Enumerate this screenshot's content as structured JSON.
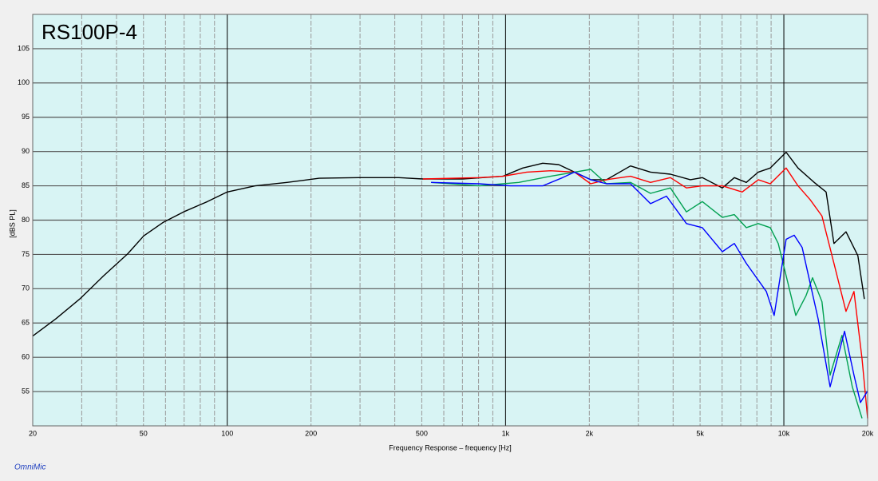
{
  "chart_data": {
    "type": "line",
    "title": "RS100P-4",
    "x_label": "Frequency Response – frequency [Hz]",
    "y_label": "[dBS PL]",
    "footer": "OmniMic",
    "log_x": true,
    "grid": true,
    "xlim": [
      20,
      20000
    ],
    "ylim": [
      50,
      110
    ],
    "xticks": [
      20,
      50,
      100,
      200,
      500,
      {
        "value": 1000,
        "label": "1k"
      },
      {
        "value": 2000,
        "label": "2k"
      },
      {
        "value": 5000,
        "label": "5k"
      },
      {
        "value": 10000,
        "label": "10k"
      },
      {
        "value": 20000,
        "label": "20k"
      }
    ],
    "xticks_minor": [
      30,
      40,
      60,
      70,
      80,
      90,
      300,
      400,
      600,
      700,
      800,
      900,
      3000,
      4000,
      6000,
      7000,
      8000,
      9000
    ],
    "yticks": [
      55,
      60,
      65,
      70,
      75,
      80,
      85,
      90,
      95,
      100,
      105
    ],
    "series": [
      {
        "color": "#000000",
        "x": [
          20,
          24.2,
          29.5,
          36,
          43.9,
          50.1,
          59,
          69.7,
          84.9,
          100,
          126,
          164,
          214,
          297,
          413,
          505,
          700,
          978,
          1153,
          1360,
          1552,
          1770,
          2022,
          2306,
          2812,
          3318,
          3912,
          4614,
          5094,
          6012,
          6638,
          7328,
          8092,
          8934,
          10190,
          11246,
          12860,
          14190,
          15140,
          16720,
          18450,
          19460
        ],
        "values": [
          63.1,
          65.6,
          68.5,
          71.9,
          75.1,
          77.7,
          79.7,
          81.2,
          82.7,
          84.1,
          85,
          85.5,
          86.1,
          86.2,
          86.2,
          86,
          86,
          86.4,
          87.6,
          88.3,
          88.1,
          87,
          85.9,
          85.9,
          87.9,
          87,
          86.7,
          85.9,
          86.2,
          84.7,
          86.2,
          85.5,
          87,
          87.6,
          89.9,
          87.6,
          85.5,
          84.1,
          76.6,
          78.3,
          74.8,
          68.5
        ]
      },
      {
        "color": "#ff0000",
        "x": [
          505,
          802,
          978,
          1192,
          1452,
          1770,
          2022,
          2306,
          2812,
          3318,
          3912,
          4466,
          5094,
          6012,
          7084,
          8092,
          8934,
          10190,
          11246,
          12420,
          13710,
          15140,
          16720,
          17860,
          19100,
          20000
        ],
        "values": [
          86,
          86.2,
          86.4,
          87,
          87.2,
          87,
          85.3,
          85.9,
          86.4,
          85.5,
          86.2,
          84.7,
          85,
          85,
          84.1,
          85.9,
          85.3,
          87.6,
          85,
          83,
          80.6,
          73.7,
          66.7,
          69.6,
          59.8,
          51.1
        ]
      },
      {
        "color": "#00a050",
        "x": [
          540,
          802,
          1116,
          1452,
          1770,
          2022,
          2306,
          2812,
          3318,
          3912,
          4466,
          5094,
          6012,
          6638,
          7328,
          8092,
          8934,
          9544,
          10190,
          11040,
          12020,
          12680,
          13710,
          14660,
          16180,
          17620,
          19100
        ],
        "values": [
          85.5,
          85,
          85.5,
          86.4,
          87,
          87.4,
          85.3,
          85.5,
          83.9,
          84.7,
          81.2,
          82.7,
          80.4,
          80.8,
          78.9,
          79.5,
          78.9,
          76.6,
          71.9,
          66.1,
          69,
          71.6,
          68.1,
          57.4,
          63.2,
          55.7,
          51.1
        ]
      },
      {
        "color": "#0000ff",
        "x": [
          540,
          802,
          1044,
          1360,
          1604,
          1770,
          2022,
          2306,
          2812,
          3318,
          3786,
          4466,
          5094,
          6012,
          6638,
          7328,
          8650,
          9232,
          10190,
          10890,
          11640,
          13280,
          14660,
          16520,
          17860,
          18840,
          20000
        ],
        "values": [
          85.5,
          85.3,
          85,
          85,
          86.2,
          87,
          85.9,
          85.3,
          85.3,
          82.4,
          83.5,
          79.5,
          78.9,
          75.4,
          76.6,
          73.7,
          69.6,
          66.1,
          77.2,
          77.8,
          76,
          65.6,
          55.7,
          63.8,
          57.4,
          53.4,
          55.1
        ]
      }
    ]
  }
}
